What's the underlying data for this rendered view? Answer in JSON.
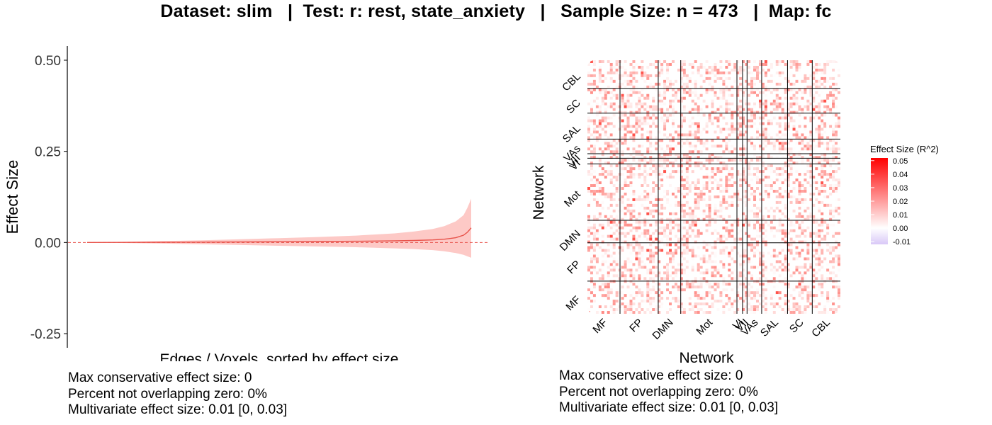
{
  "header": {
    "title": "Dataset: slim   |  Test: r: rest, state_anxiety   |   Sample Size: n = 473   |  Map: fc"
  },
  "colors": {
    "line": "#e8524a",
    "ribbon": "#fdc9c6",
    "zero_line": "#e8524a",
    "heat_high": "#ff0000",
    "heat_mid": "#ffffff",
    "heat_low": "#d9c8f7",
    "network_lines": "#000000"
  },
  "chart_data": [
    {
      "type": "line",
      "title": "",
      "xlabel": "Edges / Voxels, sorted by effect size",
      "ylabel": "Effect Size",
      "ylim": [
        -0.28,
        0.53
      ],
      "yticks": [
        -0.25,
        0.0,
        0.25,
        0.5
      ],
      "ytick_labels": [
        "-0.25",
        "0.00",
        "0.25",
        "0.50"
      ],
      "x": [
        0,
        0.1,
        0.2,
        0.3,
        0.4,
        0.5,
        0.6,
        0.7,
        0.8,
        0.85,
        0.9,
        0.93,
        0.96,
        0.98,
        0.99,
        1.0
      ],
      "series": [
        {
          "values": [
            0,
            0.0003,
            0.0006,
            0.001,
            0.0014,
            0.002,
            0.0026,
            0.0034,
            0.0045,
            0.0055,
            0.007,
            0.009,
            0.013,
            0.02,
            0.028,
            0.04
          ]
        },
        {
          "values": [
            0,
            0.002,
            0.004,
            0.006,
            0.009,
            0.012,
            0.015,
            0.019,
            0.025,
            0.03,
            0.037,
            0.045,
            0.058,
            0.075,
            0.095,
            0.12
          ]
        },
        {
          "values": [
            0,
            -0.0015,
            -0.003,
            -0.005,
            -0.007,
            -0.009,
            -0.011,
            -0.013,
            -0.016,
            -0.018,
            -0.021,
            -0.024,
            -0.029,
            -0.034,
            -0.038,
            -0.042
          ]
        }
      ],
      "reference_line": {
        "y": 0,
        "style": "dashed"
      },
      "grid": false,
      "footnotes": [
        "Max conservative effect size: 0",
        "Percent not overlapping zero: 0%",
        "Multivariate effect size: 0.01 [0, 0.03]"
      ]
    },
    {
      "type": "heatmap",
      "title": "",
      "xlabel": "Network",
      "ylabel": "Network",
      "networks": [
        "MF",
        "FP",
        "DMN",
        "Mot",
        "VI",
        "VII",
        "VAs",
        "SAL",
        "SC",
        "CBL"
      ],
      "network_sizes": [
        29,
        34,
        20,
        50,
        5,
        4,
        13,
        23,
        22,
        25
      ],
      "legend": {
        "title": "Effect Size (R^2)",
        "ticks": [
          "0.05",
          "0.04",
          "0.03",
          "0.02",
          "0.01",
          "0.00",
          "-0.01"
        ],
        "tick_values": [
          0.05,
          0.04,
          0.03,
          0.02,
          0.01,
          0.0,
          -0.01
        ],
        "range": [
          -0.012,
          0.052
        ],
        "placement": "right"
      },
      "footnotes": [
        "Max conservative effect size: 0",
        "Percent not overlapping zero: 0%",
        "Multivariate effect size: 0.01 [0, 0.03]"
      ]
    }
  ]
}
